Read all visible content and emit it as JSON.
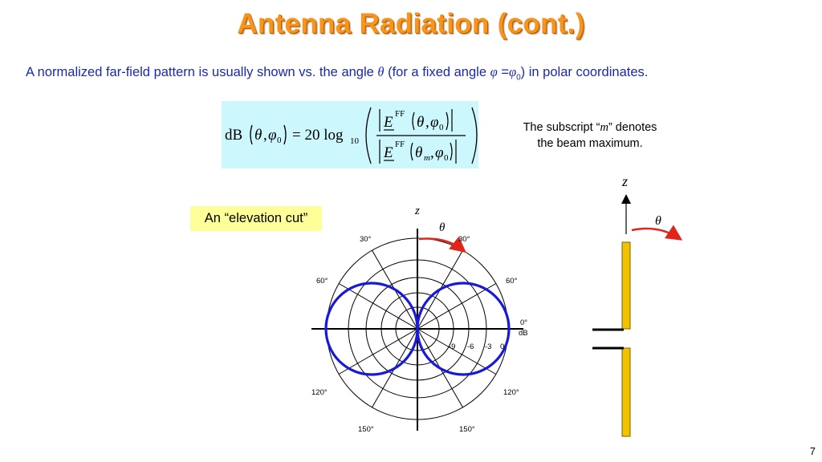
{
  "title": "Antenna Radiation (cont.)",
  "subtitle": {
    "text_a": "A normalized far-field pattern is usually shown vs. the angle ",
    "theta": "θ",
    "text_b": " (for a fixed angle ",
    "phi": "φ",
    "eq": " =",
    "phi0": "φ",
    "sub0": "0",
    "text_c": ") in polar coordinates."
  },
  "equation": {
    "lhs": "dB",
    "theta": "θ",
    "phi": "φ",
    "zero": "0",
    "eq_coef": "= 20 log",
    "log_base": "10",
    "E": "E",
    "FF": "FF",
    "m": "m"
  },
  "note": {
    "line1a": "The subscript “",
    "m": "m",
    "line1b": "” denotes",
    "line2": "the beam maximum."
  },
  "elevation_label": "An “elevation cut”",
  "polar": {
    "z_label": "z",
    "theta_label": "θ",
    "angle_labels": {
      "a30L": "30°",
      "a30R": "30°",
      "a60L": "60°",
      "a60R": "60°",
      "a120L": "120°",
      "a120R": "120°",
      "a150L": "150°",
      "a150R": "150°"
    },
    "db_labels": {
      "zero_o": "0°",
      "db": "dB",
      "m9": "-9",
      "m6": "-6",
      "m3": "-3",
      "z": "0"
    },
    "colors": {
      "pattern": "#1a1ad6",
      "arrow": "#e0261b"
    }
  },
  "antenna": {
    "z_label": "z",
    "theta_label": "θ",
    "colors": {
      "element": "#f2c200",
      "arrow": "#e0261b"
    }
  },
  "page_number": "7"
}
